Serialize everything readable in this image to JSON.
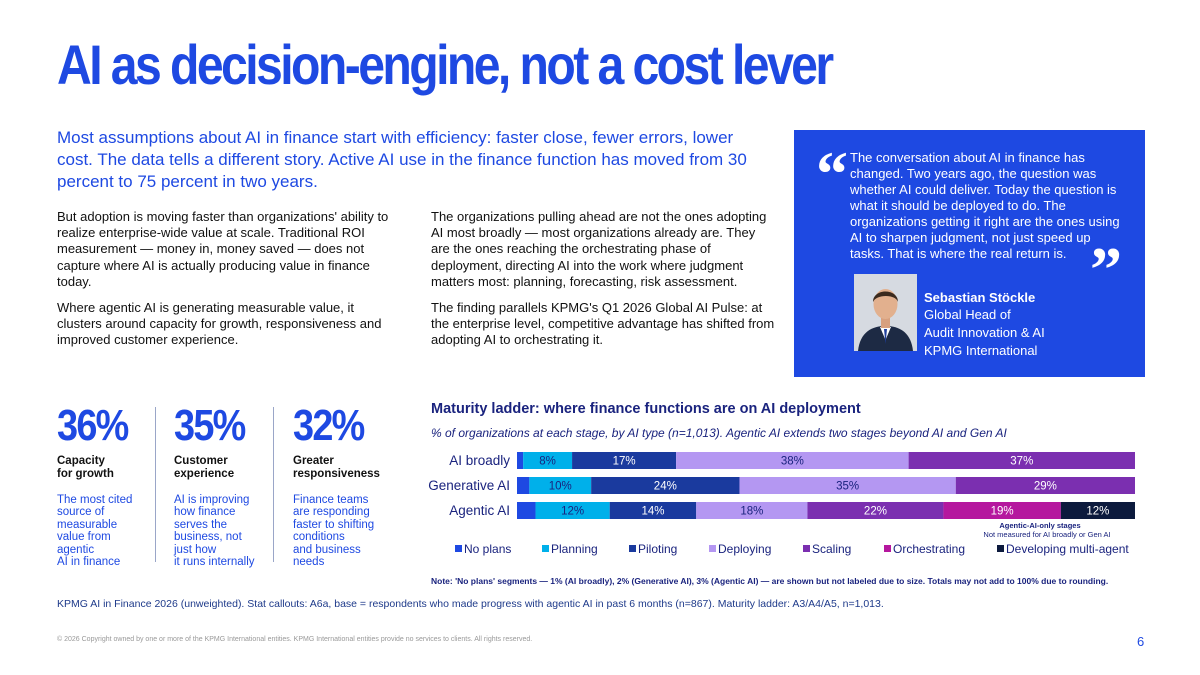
{
  "title": "AI as decision-engine, not a cost lever",
  "lede": "Most assumptions about AI in finance start with efficiency: faster close, fewer errors, lower cost. The data tells a different story. Active AI use in the finance function has moved from 30 percent to 75 percent in two years.",
  "body_left": [
    "But adoption is moving faster than organizations' ability to realize enterprise-wide value at scale. Traditional ROI measurement — money in, money saved — does not capture where AI is actually producing value in finance today.",
    "Where agentic AI is generating measurable value, it clusters around capacity for growth, responsiveness and improved customer experience."
  ],
  "body_right": [
    "The organizations pulling ahead are not the ones adopting AI most broadly — most organizations already are. They are the ones reaching the orchestrating phase of deployment, directing AI into the work where judgment matters most: planning, forecasting, risk assessment.",
    "The finding parallels KPMG's Q1 2026 Global AI Pulse: at the enterprise level, competitive advantage has shifted from adopting AI to orchestrating it."
  ],
  "quote": {
    "open_mark": "“",
    "close_mark": "”",
    "text": "The conversation about AI in finance has changed. Two years ago, the question was whether AI could deliver. Today the question is what it should be deployed to do. The organizations getting it right are the ones using AI to sharpen judgment, not just speed up tasks. That is where the real return is.",
    "name": "Sebastian Stöckle",
    "role": [
      "Global Head of",
      "Audit Innovation & AI",
      "KPMG International"
    ],
    "box_color": "#1e49e2"
  },
  "stats": [
    {
      "value": "36%",
      "label": [
        "Capacity",
        "for growth"
      ],
      "desc": [
        "The most cited",
        "source of",
        "measurable",
        "value from",
        "agentic",
        "AI in finance"
      ]
    },
    {
      "value": "35%",
      "label": [
        "Customer",
        "experience"
      ],
      "desc": [
        "AI is improving",
        "how finance",
        "serves the",
        "business, not",
        "just how",
        "it runs internally"
      ]
    },
    {
      "value": "32%",
      "label": [
        "Greater",
        "responsiveness"
      ],
      "desc": [
        "Finance teams",
        "are responding",
        "faster to shifting",
        "conditions",
        "and business",
        "needs"
      ]
    }
  ],
  "chart_data": {
    "type": "bar",
    "orientation": "horizontal-stacked",
    "title": "Maturity ladder: where finance functions are on AI deployment",
    "subtitle": "% of organizations at each stage, by AI type (n=1,013). Agentic AI extends two stages beyond AI and Gen AI",
    "categories": [
      "AI broadly",
      "Generative AI",
      "Agentic AI"
    ],
    "series": [
      {
        "name": "No plans",
        "color": "#1e49e2",
        "values": [
          1,
          2,
          3
        ]
      },
      {
        "name": "Planning",
        "color": "#00b0ea",
        "values": [
          8,
          10,
          12
        ]
      },
      {
        "name": "Piloting",
        "color": "#1a3a9e",
        "values": [
          17,
          24,
          14
        ]
      },
      {
        "name": "Deploying",
        "color": "#b497f2",
        "values": [
          38,
          35,
          18
        ]
      },
      {
        "name": "Scaling",
        "color": "#7b2fb0",
        "values": [
          37,
          29,
          22
        ]
      },
      {
        "name": "Orchestrating",
        "color": "#b5179e",
        "values": [
          0,
          0,
          19
        ]
      },
      {
        "name": "Developing multi-agent",
        "color": "#0c1a3d",
        "values": [
          0,
          0,
          12
        ]
      }
    ],
    "labels": [
      [
        "",
        "8%",
        "17%",
        "38%",
        "37%",
        "",
        ""
      ],
      [
        "",
        "10%",
        "24%",
        "35%",
        "29%",
        "",
        ""
      ],
      [
        "",
        "12%",
        "14%",
        "18%",
        "22%",
        "19%",
        "12%"
      ]
    ],
    "annotation": {
      "title": "Agentic-AI-only stages",
      "text": "Not measured for AI broadly or Gen AI"
    },
    "legend": "bottom"
  },
  "note": "Note: 'No plans' segments — 1% (AI broadly), 2% (Generative AI), 3% (Agentic AI) — are shown but not labeled due to size. Totals may not add to 100% due to rounding.",
  "source": "KPMG AI in Finance 2026 (unweighted). Stat callouts: A6a, base = respondents who made progress with agentic AI in past 6 months (n=867). Maturity ladder: A3/A4/A5, n=1,013.",
  "copyright": "© 2026 Copyright owned by one or more of the KPMG International entities. KPMG International entities provide no services to clients. All rights reserved.",
  "page_number": "6",
  "accent_color": "#1e49e2"
}
